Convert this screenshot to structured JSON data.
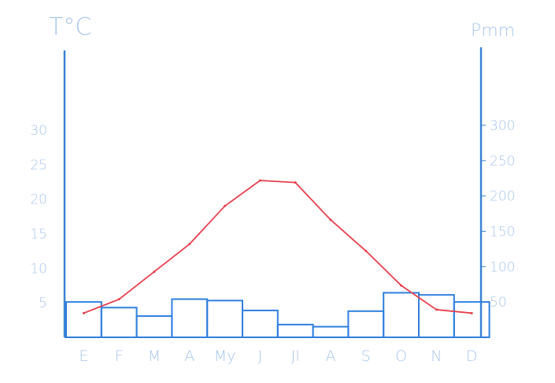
{
  "chart_data": {
    "type": "bar+line",
    "title": "",
    "categories": [
      "E",
      "F",
      "M",
      "A",
      "My",
      "J",
      "Jl",
      "A",
      "S",
      "O",
      "N",
      "D"
    ],
    "series": [
      {
        "axis": "right",
        "kind": "bar",
        "values": [
          50,
          42,
          30,
          54,
          52,
          38,
          18,
          15,
          37,
          63,
          60,
          50
        ]
      },
      {
        "axis": "left",
        "kind": "line",
        "values": [
          3.5,
          5.5,
          9.5,
          13.5,
          19,
          22.7,
          22.4,
          17,
          12.5,
          7.5,
          4,
          3.5
        ]
      }
    ],
    "y_left": {
      "label": "T°C",
      "ticks": [
        "5",
        "10",
        "15",
        "20",
        "25",
        "30"
      ],
      "range": [
        0,
        30
      ]
    },
    "y_right": {
      "label": "Pmm",
      "ticks": [
        "50",
        "100",
        "150",
        "200",
        "250",
        "300"
      ],
      "range": [
        0,
        300
      ]
    },
    "grid": false,
    "colors": {
      "axis": "#3b82d6",
      "bars": "#2f7fe0",
      "line": "#e8404f",
      "labels": "#a9c6ec"
    }
  }
}
